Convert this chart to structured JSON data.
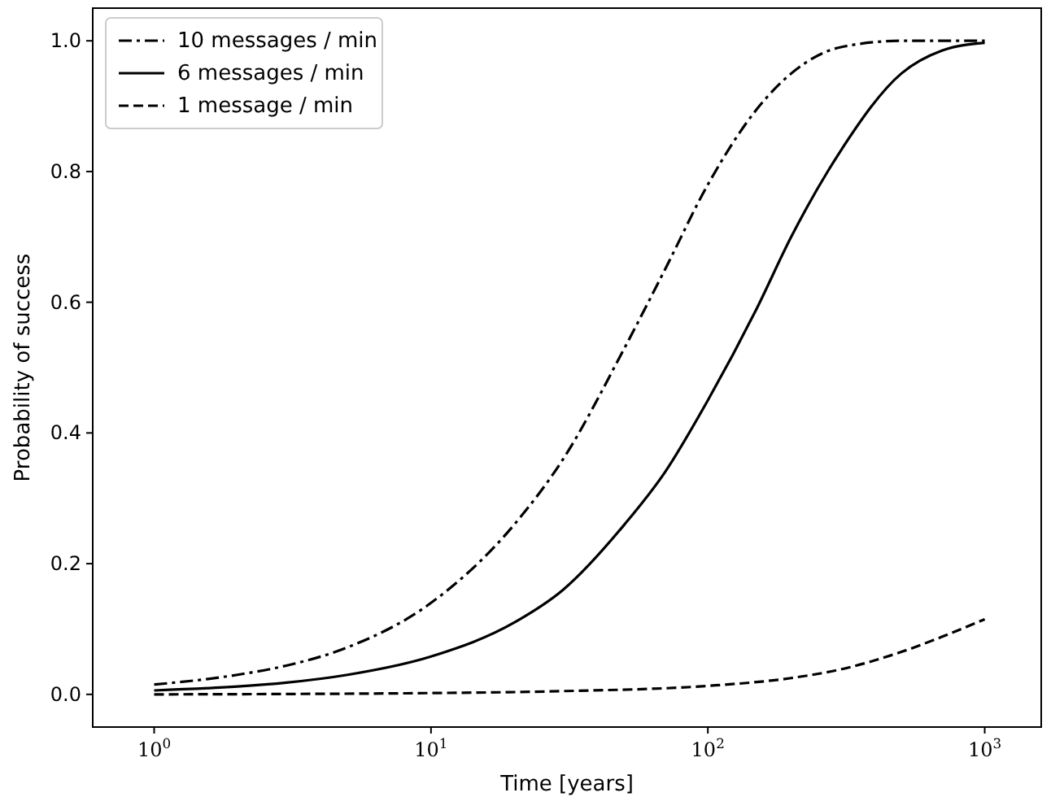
{
  "chart_data": {
    "type": "line",
    "xlabel": "Time [years]",
    "ylabel": "Probability of success",
    "log": "x",
    "xlim": [
      0.6,
      1600
    ],
    "ylim": [
      -0.05,
      1.05
    ],
    "xticks": [
      {
        "value": 1,
        "label": "10$^{0}$"
      },
      {
        "value": 10,
        "label": "10$^{1}$"
      },
      {
        "value": 100,
        "label": "10$^{2}$"
      },
      {
        "value": 1000,
        "label": "10$^{3}$"
      }
    ],
    "yticks": [
      {
        "value": 0,
        "label": "0.0"
      },
      {
        "value": 0.2,
        "label": "0.2"
      },
      {
        "value": 0.4,
        "label": "0.4"
      },
      {
        "value": 0.6,
        "label": "0.6"
      },
      {
        "value": 0.8,
        "label": "0.8"
      },
      {
        "value": 1,
        "label": "1.0"
      }
    ],
    "legend": "top left",
    "grid": false,
    "series": [
      {
        "name": "10 messages / min",
        "color": "#000000",
        "line_style": "dashdot",
        "x": [
          1,
          2,
          3,
          5,
          10,
          20,
          30,
          50,
          70,
          100,
          150,
          200,
          300,
          500,
          1000
        ],
        "values": [
          0.015,
          0.03,
          0.044,
          0.072,
          0.14,
          0.26,
          0.36,
          0.53,
          0.65,
          0.78,
          0.895,
          0.95,
          0.99,
          1.0,
          1.0
        ]
      },
      {
        "name": "6 messages / min",
        "color": "#000000",
        "line_style": "solid",
        "x": [
          1,
          2,
          3,
          5,
          10,
          20,
          30,
          50,
          70,
          100,
          150,
          200,
          300,
          500,
          700,
          1000
        ],
        "values": [
          0.006,
          0.012,
          0.018,
          0.03,
          0.058,
          0.11,
          0.16,
          0.26,
          0.34,
          0.45,
          0.59,
          0.7,
          0.83,
          0.95,
          0.985,
          0.997
        ]
      },
      {
        "name": "1 message / min",
        "color": "#000000",
        "line_style": "dashed",
        "x": [
          1,
          10,
          30,
          100,
          200,
          300,
          500,
          700,
          1000
        ],
        "values": [
          0,
          0.002,
          0.005,
          0.013,
          0.025,
          0.038,
          0.065,
          0.088,
          0.115
        ]
      }
    ]
  }
}
